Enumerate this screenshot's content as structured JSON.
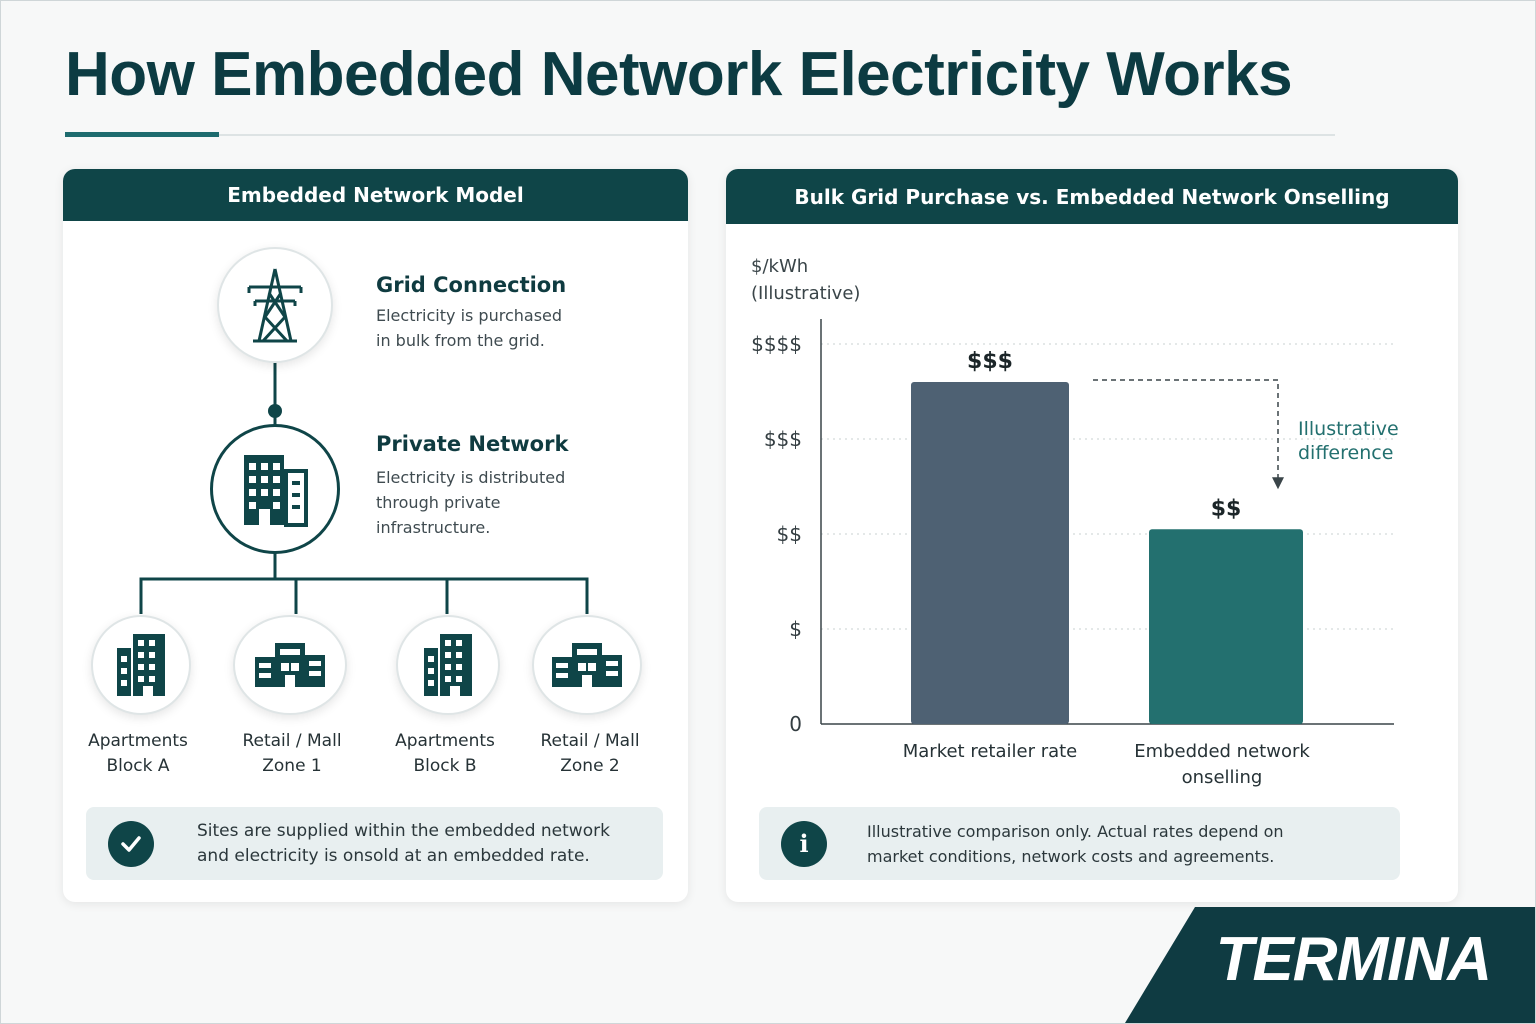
{
  "title": "How Embedded Network Electricity Works",
  "left_panel": {
    "header": "Embedded Network Model",
    "grid": {
      "icon": "transmission-tower-icon",
      "title": "Grid Connection",
      "desc_line1": "Electricity is purchased",
      "desc_line2": "in bulk from the grid."
    },
    "private": {
      "icon": "office-building-icon",
      "title": "Private Network",
      "desc_line1": "Electricity is distributed",
      "desc_line2": "through private",
      "desc_line3": "infrastructure."
    },
    "sites": [
      {
        "icon": "apartment-building-icon",
        "line1": "Apartments",
        "line2": "Block A"
      },
      {
        "icon": "retail-store-icon",
        "line1": "Retail / Mall",
        "line2": "Zone 1"
      },
      {
        "icon": "apartment-building-icon",
        "line1": "Apartments",
        "line2": "Block B"
      },
      {
        "icon": "retail-store-icon",
        "line1": "Retail / Mall",
        "line2": "Zone 2"
      }
    ],
    "note": {
      "icon": "checkmark-icon",
      "line1": "Sites are supplied within the embedded network",
      "line2": "and electricity is onsold at an embedded rate."
    }
  },
  "right_panel": {
    "header": "Bulk Grid Purchase vs. Embedded Network Onselling",
    "note": {
      "icon": "info-icon",
      "line1": "Illustrative comparison only. Actual rates depend on",
      "line2": "market conditions, network costs and agreements."
    }
  },
  "chart_data": {
    "type": "bar",
    "ylabel_line1": "$/kWh",
    "ylabel_line2": "(Illustrative)",
    "y_ticks": [
      "0",
      "$",
      "$$",
      "$$$",
      "$$$$"
    ],
    "ylim": [
      0,
      4
    ],
    "grid": true,
    "categories": [
      {
        "line1": "Market retailer rate",
        "line2": ""
      },
      {
        "line1": "Embedded network",
        "line2": "onselling"
      }
    ],
    "values": [
      3.6,
      2.05
    ],
    "data_labels": [
      "$$$",
      "$$"
    ],
    "colors": [
      "#4e6173",
      "#23706f"
    ],
    "annotation_line1": "Illustrative",
    "annotation_line2": "difference"
  },
  "brand": {
    "name": "TERMINA",
    "color": "#0f3b42"
  },
  "colors": {
    "primary": "#0f4548",
    "accent": "#1d6b6e"
  }
}
